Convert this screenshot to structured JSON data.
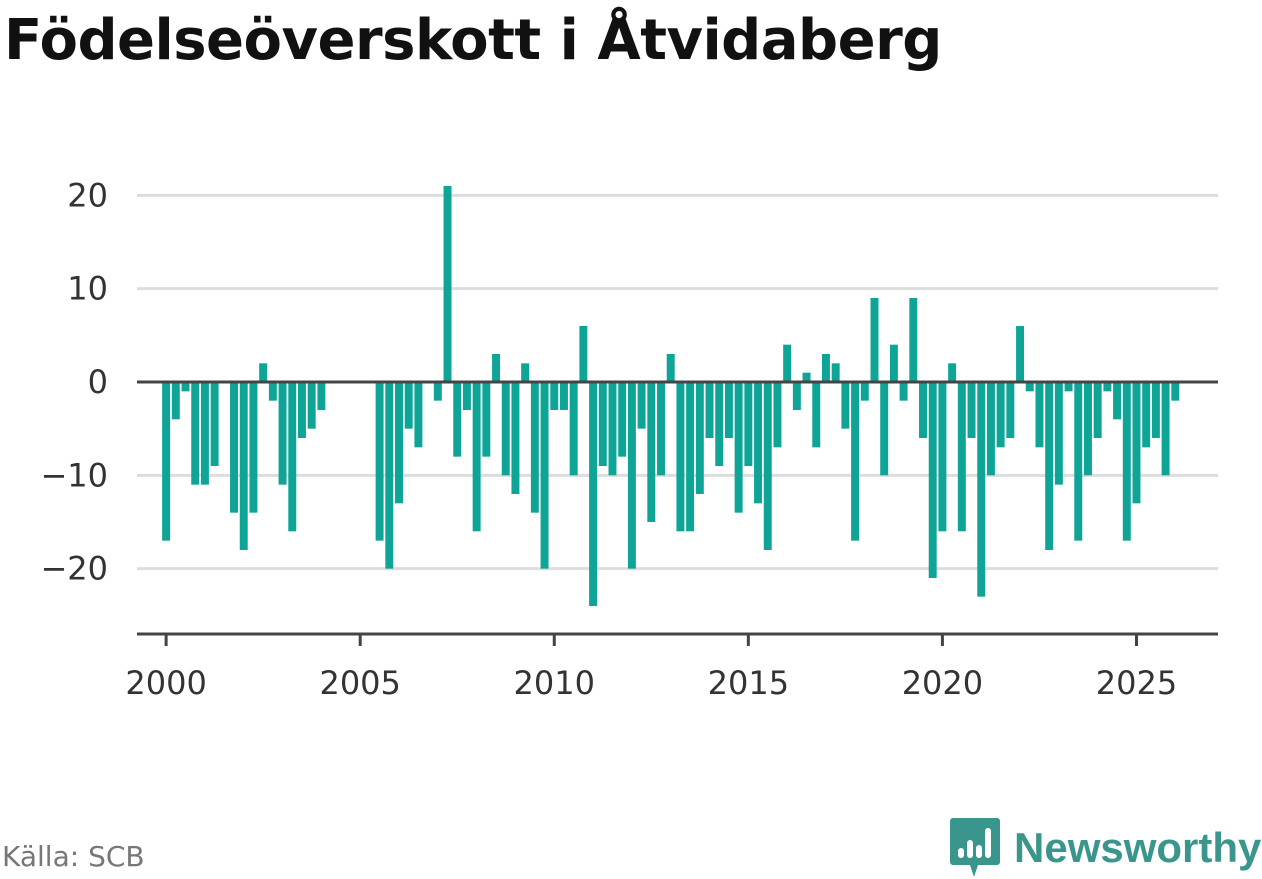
{
  "title": "Födelseöverskott i Åtvidaberg",
  "source": "Källa: SCB",
  "brand": {
    "name": "Newsworthy",
    "icon": "newsworthy-logo-icon",
    "color": "#3a968c"
  },
  "colors": {
    "bar": "#0ea597",
    "grid": "#dddddd",
    "zero": "#444444"
  },
  "chart_data": {
    "type": "bar",
    "title": "Födelseöverskott i Åtvidaberg",
    "xlabel": "",
    "ylabel": "",
    "grid": true,
    "ylim": [
      -27,
      24
    ],
    "xlim": [
      1999.25,
      2027.1
    ],
    "y_ticks": [
      20,
      10,
      0,
      -10,
      -20
    ],
    "y_tick_labels": [
      "20",
      "10",
      "0",
      "−10",
      "−20"
    ],
    "x_ticks": [
      2000,
      2005,
      2010,
      2015,
      2020,
      2025
    ],
    "x_tick_labels": [
      "2000",
      "2005",
      "2010",
      "2015",
      "2020",
      "2025"
    ],
    "x_start": 2000.0,
    "x_step": 0.25,
    "values": [
      -17,
      -4,
      -1,
      -11,
      -11,
      -9,
      0,
      -14,
      -18,
      -14,
      2,
      -2,
      -11,
      -16,
      -6,
      -5,
      -3,
      0,
      0,
      0,
      0,
      0,
      -17,
      -20,
      -13,
      -5,
      -7,
      0,
      -2,
      21,
      -8,
      -3,
      -16,
      -8,
      3,
      -10,
      -12,
      2,
      -14,
      -20,
      -3,
      -3,
      -10,
      6,
      -24,
      -9,
      -10,
      -8,
      -20,
      -5,
      -15,
      -10,
      3,
      -16,
      -16,
      -12,
      -6,
      -9,
      -6,
      -14,
      -9,
      -13,
      -18,
      -7,
      4,
      -3,
      1,
      -7,
      3,
      2,
      -5,
      -17,
      -2,
      9,
      -10,
      4,
      -2,
      9,
      -6,
      -21,
      -16,
      2,
      -16,
      -6,
      -23,
      -10,
      -7,
      -6,
      6,
      -1,
      -7,
      -18,
      -11,
      -1,
      -17,
      -10,
      -6,
      -1,
      -4,
      -17,
      -13,
      -7,
      -6,
      -10,
      -2
    ]
  }
}
